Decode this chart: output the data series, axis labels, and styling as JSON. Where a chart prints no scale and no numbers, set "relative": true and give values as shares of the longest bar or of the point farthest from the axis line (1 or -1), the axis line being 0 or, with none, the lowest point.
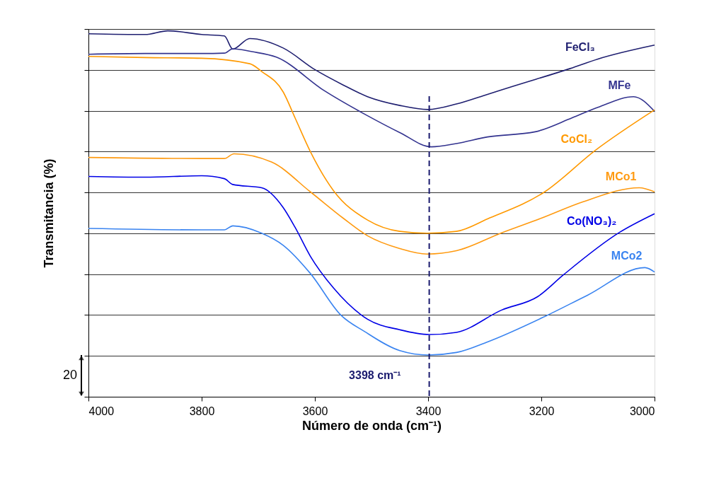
{
  "chart_data": {
    "type": "line",
    "relative": true,
    "xlabel": "Número de onda (cm⁻¹)",
    "ylabel": "Transmitancia (%)",
    "xlim": [
      4000,
      3000
    ],
    "xticks": [
      4000,
      3800,
      3600,
      3400,
      3200,
      3000
    ],
    "grid": "y",
    "legend": false,
    "marker": "none",
    "line_style": "solid",
    "tick_labels": "x",
    "annotations": [
      "20"
    ],
    "ref_lines": [
      {
        "axis": "x",
        "value": 3398,
        "label": "3398 cm⁻¹",
        "color": "#1a1a6e",
        "line_style": "dashed"
      }
    ],
    "series": [
      {
        "name": "FeCl₃",
        "color": "#1f1f70",
        "x": [
          4000,
          3900,
          3860,
          3800,
          3760,
          3745,
          3715,
          3656,
          3600,
          3550,
          3507,
          3450,
          3400,
          3350,
          3300,
          3249,
          3149,
          3100,
          3000
        ],
        "values": [
          0.992,
          0.99,
          1.0,
          0.99,
          0.986,
          0.95,
          0.979,
          0.953,
          0.894,
          0.852,
          0.82,
          0.796,
          0.785,
          0.8,
          0.824,
          0.849,
          0.897,
          0.923,
          0.961
        ]
      },
      {
        "name": "MFe",
        "color": "#33338f",
        "x": [
          4000,
          3900,
          3800,
          3760,
          3745,
          3711,
          3668,
          3583,
          3507,
          3450,
          3394,
          3350,
          3295,
          3211,
          3146,
          3100,
          3037,
          3000
        ],
        "values": [
          0.936,
          0.938,
          0.938,
          0.939,
          0.951,
          0.943,
          0.928,
          0.836,
          0.768,
          0.722,
          0.683,
          0.692,
          0.71,
          0.724,
          0.762,
          0.791,
          0.82,
          0.78
        ]
      },
      {
        "name": "CoCl₂",
        "color": "#ff9900",
        "x": [
          4000,
          3900,
          3800,
          3715,
          3694,
          3656,
          3635,
          3608,
          3567,
          3507,
          3450,
          3402,
          3350,
          3295,
          3194,
          3105,
          3000
        ],
        "values": [
          0.93,
          0.927,
          0.925,
          0.91,
          0.889,
          0.833,
          0.762,
          0.67,
          0.563,
          0.483,
          0.452,
          0.447,
          0.452,
          0.486,
          0.56,
          0.673,
          0.784
        ]
      },
      {
        "name": "MCo1",
        "color": "#ff9a10",
        "x": [
          4000,
          3800,
          3760,
          3743,
          3676,
          3608,
          3550,
          3507,
          3450,
          3402,
          3350,
          3270,
          3200,
          3126,
          3027,
          3000
        ],
        "values": [
          0.654,
          0.651,
          0.651,
          0.664,
          0.641,
          0.56,
          0.488,
          0.44,
          0.405,
          0.39,
          0.399,
          0.448,
          0.488,
          0.533,
          0.571,
          0.56
        ]
      },
      {
        "name": "Co(NO₃)₂",
        "color": "#0000e6",
        "x": [
          4000,
          3900,
          3800,
          3760,
          3745,
          3694,
          3656,
          3635,
          3608,
          3567,
          3507,
          3450,
          3398,
          3350,
          3270,
          3206,
          3161,
          3062,
          3000
        ],
        "values": [
          0.602,
          0.6,
          0.604,
          0.596,
          0.58,
          0.571,
          0.517,
          0.463,
          0.384,
          0.297,
          0.212,
          0.183,
          0.17,
          0.176,
          0.237,
          0.274,
          0.333,
          0.449,
          0.5
        ]
      },
      {
        "name": "MCo2",
        "color": "#3a84f0",
        "x": [
          4000,
          3800,
          3760,
          3745,
          3694,
          3656,
          3608,
          3554,
          3512,
          3450,
          3400,
          3350,
          3295,
          3193,
          3119,
          3017,
          3000
        ],
        "values": [
          0.46,
          0.456,
          0.456,
          0.467,
          0.447,
          0.414,
          0.337,
          0.223,
          0.178,
          0.126,
          0.114,
          0.121,
          0.15,
          0.22,
          0.277,
          0.353,
          0.341
        ]
      }
    ]
  }
}
